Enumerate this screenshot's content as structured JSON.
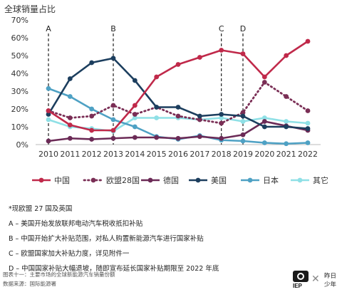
{
  "chart_data": {
    "type": "line",
    "ylabel": "全球销量占比",
    "x": [
      "2010",
      "2011",
      "2012",
      "2013",
      "2014",
      "2015",
      "2016",
      "2017",
      "2018",
      "2019",
      "2020",
      "2021",
      "2022"
    ],
    "ylim": [
      0,
      70
    ],
    "yticks": [
      "0%",
      "10%",
      "20%",
      "30%",
      "40%",
      "50%",
      "60%",
      "70%"
    ],
    "series": [
      {
        "name": "中国",
        "color": "#c0294a",
        "style": "solid",
        "values": [
          19,
          11,
          8,
          8,
          22,
          38,
          45,
          49,
          53,
          51,
          38,
          50,
          58
        ]
      },
      {
        "name": "欧盟28国",
        "color": "#7a2e55",
        "style": "dotted",
        "values": [
          19,
          15,
          16,
          22,
          17,
          21,
          16,
          14,
          12,
          18,
          35,
          27,
          19
        ]
      },
      {
        "name": "德国",
        "color": "#6b2a56",
        "style": "solid",
        "values": [
          2,
          3.5,
          3,
          3.5,
          4,
          4,
          3.5,
          4.5,
          3.5,
          5.5,
          13,
          10.5,
          8
        ]
      },
      {
        "name": "美国",
        "color": "#1c3e5e",
        "style": "solid",
        "values": [
          17,
          37,
          46,
          48.5,
          36,
          21,
          21,
          16,
          17,
          16,
          10,
          10,
          9
        ]
      },
      {
        "name": "日本",
        "color": "#4ea1c4",
        "style": "solid",
        "values": [
          31.5,
          27,
          20,
          14,
          10,
          4.5,
          3,
          5,
          2.5,
          2,
          1,
          0.5,
          1
        ]
      },
      {
        "name": "其它",
        "color": "#8fe0e6",
        "style": "solid",
        "values": [
          14,
          10,
          9,
          7.5,
          15,
          15,
          15,
          14,
          15,
          13,
          15,
          13,
          12
        ]
      }
    ],
    "annotations": [
      {
        "label": "A",
        "x": "2010"
      },
      {
        "label": "B",
        "x": "2013"
      },
      {
        "label": "C",
        "x": "2018"
      },
      {
        "label": "D",
        "x": "2019"
      }
    ],
    "legend_placement": "bottom",
    "grid": false
  },
  "notes": {
    "star": "*现欧盟 27 国及英国",
    "a": "A – 美国开始发放联邦电动汽车税收抵扣补贴",
    "b": "B – 中国开始扩大补贴范围，对私人购置新能源汽车进行国家补贴",
    "c": "C – 欧盟国家加大补贴力度，详见附件一",
    "d": "D – 中国国家补贴大幅退坡，随即宣布延长国家补贴期限至 2022 年底"
  },
  "footer": {
    "caption": "图表十一：主要市场的全球新能源汽车销量份额",
    "source": "数据来源：国际能源署"
  },
  "logo": {
    "iep": "IEP",
    "cn_line1": "昨日",
    "cn_line2": "少年"
  }
}
